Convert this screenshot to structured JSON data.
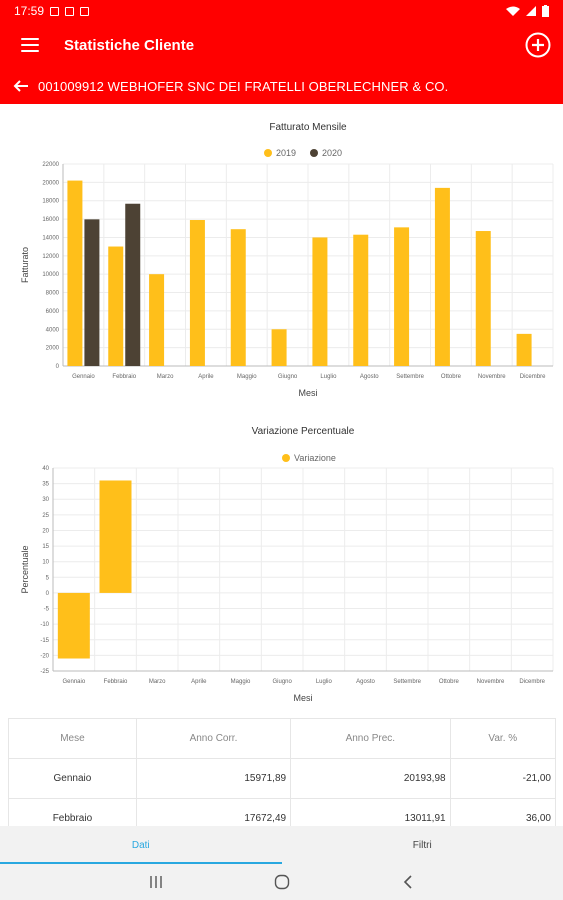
{
  "status": {
    "time": "17:59"
  },
  "appbar": {
    "title": "Statistiche Cliente"
  },
  "customer": {
    "label": "001009912 WEBHOFER SNC DEI FRATELLI OBERLECHNER & CO."
  },
  "colors": {
    "primary": "#ff0000",
    "bar2019": "#ffbf1a",
    "bar2020": "#4d4234",
    "accent": "#29a8e0"
  },
  "chart_data": [
    {
      "type": "bar",
      "title": "Fatturato Mensile",
      "xlabel": "Mesi",
      "ylabel": "Fatturato",
      "categories": [
        "Gennaio",
        "Febbraio",
        "Marzo",
        "Aprile",
        "Maggio",
        "Giugno",
        "Luglio",
        "Agosto",
        "Settembre",
        "Ottobre",
        "Novembre",
        "Dicembre"
      ],
      "series": [
        {
          "name": "2019",
          "values": [
            20193.98,
            13011.91,
            10000,
            15900,
            14900,
            4000,
            14000,
            14300,
            15100,
            19400,
            14700,
            3500
          ]
        },
        {
          "name": "2020",
          "values": [
            15971.89,
            17672.49,
            null,
            null,
            null,
            null,
            null,
            null,
            null,
            null,
            null,
            null
          ]
        }
      ],
      "ylim": [
        0,
        22000
      ],
      "yticks": [
        0,
        2000,
        4000,
        6000,
        8000,
        10000,
        12000,
        14000,
        16000,
        18000,
        20000,
        22000
      ],
      "legend": "top-center",
      "grid": true
    },
    {
      "type": "bar",
      "title": "Variazione Percentuale",
      "xlabel": "Mesi",
      "ylabel": "Percentuale",
      "categories": [
        "Gennaio",
        "Febbraio",
        "Marzo",
        "Aprile",
        "Maggio",
        "Giugno",
        "Luglio",
        "Agosto",
        "Settembre",
        "Ottobre",
        "Novembre",
        "Dicembre"
      ],
      "series": [
        {
          "name": "Variazione",
          "values": [
            -21.0,
            36.0,
            null,
            null,
            null,
            null,
            null,
            null,
            null,
            null,
            null,
            null
          ]
        }
      ],
      "ylim": [
        -25,
        40
      ],
      "yticks": [
        -25,
        -20,
        -15,
        -10,
        -5,
        0,
        5,
        10,
        15,
        20,
        25,
        30,
        35,
        40
      ],
      "legend": "top-center",
      "grid": true
    }
  ],
  "table": {
    "headers": [
      "Mese",
      "Anno Corr.",
      "Anno Prec.",
      "Var. %"
    ],
    "rows": [
      [
        "Gennaio",
        "15971,89",
        "20193,98",
        "-21,00"
      ],
      [
        "Febbraio",
        "17672,49",
        "13011,91",
        "36,00"
      ]
    ]
  },
  "tabs": [
    {
      "label": "Dati",
      "active": true
    },
    {
      "label": "Filtri",
      "active": false
    }
  ]
}
